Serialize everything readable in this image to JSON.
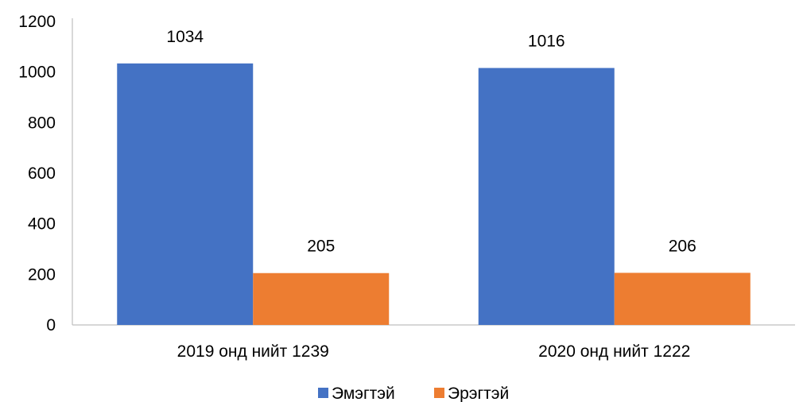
{
  "chart_data": {
    "type": "bar",
    "categories": [
      "2019 онд нийт 1239",
      "2020 онд нийт 1222"
    ],
    "series": [
      {
        "name": "Эмэгтэй",
        "values": [
          1034,
          1016
        ],
        "color": "#4472C4"
      },
      {
        "name": "Эрэгтэй",
        "values": [
          205,
          206
        ],
        "color": "#ED7D31"
      }
    ],
    "ylim": [
      0,
      1200
    ],
    "yticks": [
      0,
      200,
      400,
      600,
      800,
      1000,
      1200
    ],
    "grid": false,
    "legend_position": "bottom",
    "axis_color": "#BFBFBF"
  }
}
